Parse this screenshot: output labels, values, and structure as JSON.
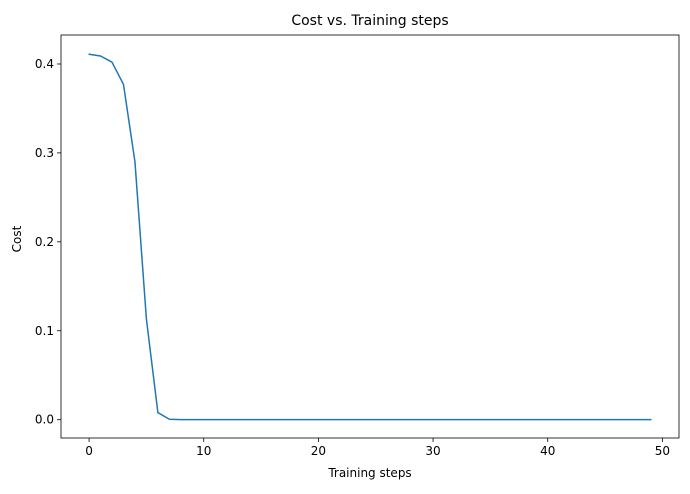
{
  "chart_data": {
    "type": "line",
    "title": "Cost vs. Training steps",
    "xlabel": "Training steps",
    "ylabel": "Cost",
    "xlim": [
      -2.45,
      51.45
    ],
    "ylim": [
      -0.0206,
      0.4326
    ],
    "xticks": [
      0,
      10,
      20,
      30,
      40,
      50
    ],
    "yticks": [
      0.0,
      0.1,
      0.2,
      0.3,
      0.4
    ],
    "xtick_labels": [
      "0",
      "10",
      "20",
      "30",
      "40",
      "50"
    ],
    "ytick_labels": [
      "0.0",
      "0.1",
      "0.2",
      "0.3",
      "0.4"
    ],
    "grid": false,
    "series": [
      {
        "color": "#1f77b4",
        "x": [
          0,
          1,
          2,
          3,
          4,
          5,
          6,
          7,
          8,
          9,
          10,
          11,
          12,
          13,
          14,
          15,
          16,
          17,
          18,
          19,
          20,
          21,
          22,
          23,
          24,
          25,
          26,
          27,
          28,
          29,
          30,
          31,
          32,
          33,
          34,
          35,
          36,
          37,
          38,
          39,
          40,
          41,
          42,
          43,
          44,
          45,
          46,
          47,
          48,
          49
        ],
        "values": [
          0.411,
          0.409,
          0.402,
          0.377,
          0.29,
          0.113,
          0.008,
          0.0005,
          0,
          0,
          0,
          0,
          0,
          0,
          0,
          0,
          0,
          0,
          0,
          0,
          0,
          0,
          0,
          0,
          0,
          0,
          0,
          0,
          0,
          0,
          0,
          0,
          0,
          0,
          0,
          0,
          0,
          0,
          0,
          0,
          0,
          0,
          0,
          0,
          0,
          0,
          0,
          0,
          0,
          0
        ]
      }
    ]
  }
}
